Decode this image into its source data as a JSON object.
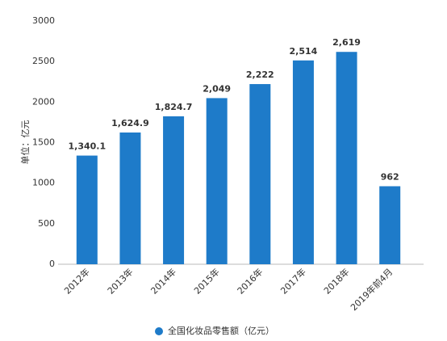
{
  "chart_data": {
    "type": "bar",
    "y_label": "单位：亿元",
    "categories": [
      "2012年",
      "2013年",
      "2014年",
      "2015年",
      "2016年",
      "2017年",
      "2018年",
      "2019年前4月"
    ],
    "series": [
      {
        "name": "全国化妆品零售额（亿元）",
        "color": "#1e7bc9",
        "values": [
          1340.1,
          1624.9,
          1824.7,
          2049,
          2222,
          2514,
          2619,
          962
        ],
        "value_labels": [
          "1,340.1",
          "1,624.9",
          "1,824.7",
          "2,049",
          "2,222",
          "2,514",
          "2,619",
          "962"
        ]
      }
    ],
    "ylim": [
      0,
      3000
    ],
    "yticks": [
      0,
      500,
      1000,
      1500,
      2000,
      2500,
      3000
    ],
    "grid": false,
    "legend": "bottom"
  }
}
